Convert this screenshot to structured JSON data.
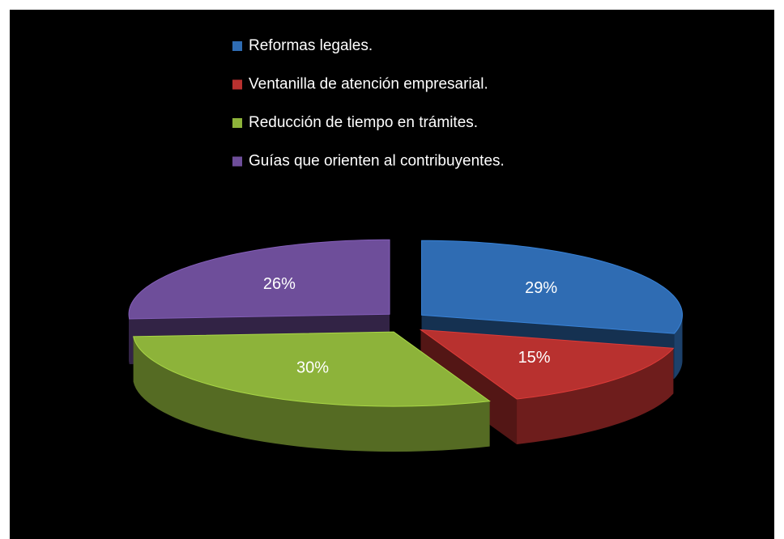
{
  "chart_data": {
    "type": "pie",
    "categories": [
      "Reformas legales.",
      "Ventanilla de atención empresarial.",
      "Reducción de tiempo en trámites.",
      "Guías que orienten al contribuyentes."
    ],
    "values": [
      29,
      15,
      30,
      26
    ],
    "value_labels": [
      "29%",
      "15%",
      "30%",
      "26%"
    ],
    "colors": [
      "#2f6cb3",
      "#b8312f",
      "#8db33a",
      "#6e4e9a"
    ],
    "legend": "top"
  }
}
